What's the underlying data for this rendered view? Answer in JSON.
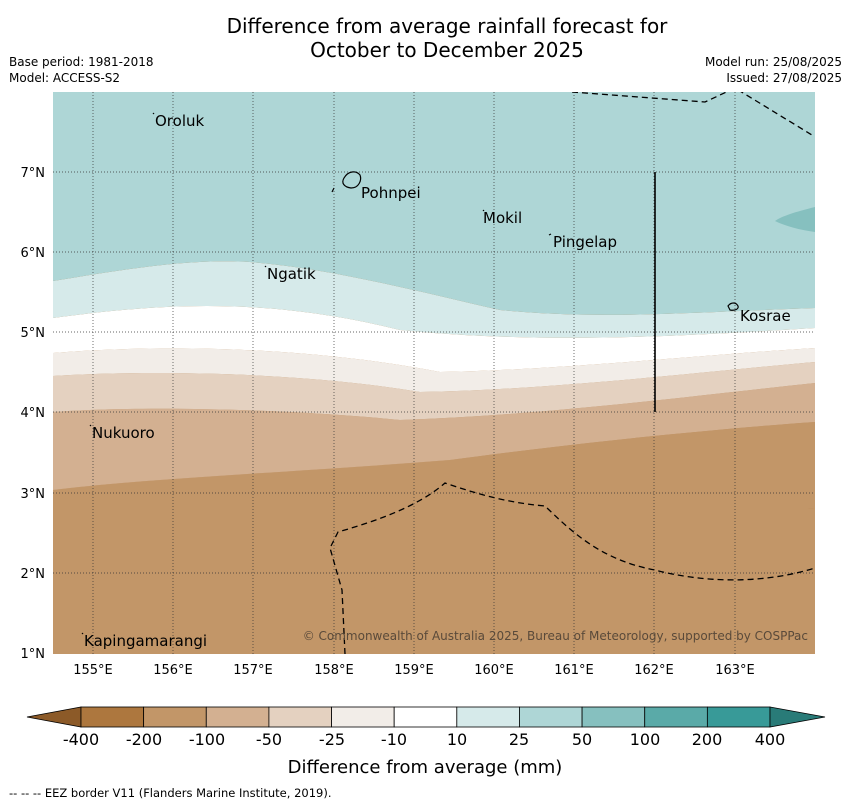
{
  "title": {
    "line1": "Difference from average rainfall forecast for",
    "line2": "October to December 2025"
  },
  "meta": {
    "base_period": "Base period: 1981-2018",
    "model": "Model: ACCESS-S2",
    "model_run": "Model run: 25/08/2025",
    "issued": "Issued: 27/08/2025"
  },
  "axes": {
    "longitude_ticks": [
      "155°E",
      "156°E",
      "157°E",
      "158°E",
      "159°E",
      "160°E",
      "161°E",
      "162°E",
      "163°E"
    ],
    "latitude_ticks": [
      "7°N",
      "6°N",
      "5°N",
      "4°N",
      "3°N",
      "2°N",
      "1°N"
    ]
  },
  "places": [
    {
      "name": "Oroluk",
      "lon": 155.8,
      "lat": 7.6
    },
    {
      "name": "Pohnpei",
      "lon": 158.3,
      "lat": 6.8
    },
    {
      "name": "Mokil",
      "lon": 159.9,
      "lat": 6.4
    },
    {
      "name": "Pingelap",
      "lon": 160.7,
      "lat": 6.1
    },
    {
      "name": "Ngatik",
      "lon": 157.1,
      "lat": 5.7
    },
    {
      "name": "Kosrae",
      "lon": 163.0,
      "lat": 5.2
    },
    {
      "name": "Nukuoro",
      "lon": 155.0,
      "lat": 3.7
    },
    {
      "name": "Kapingamarangi",
      "lon": 154.9,
      "lat": 1.1
    }
  ],
  "copyright": "© Commonwealth of Australia 2025, Bureau of Meteorology, supported by COSPPac",
  "colorbar": {
    "title": "Difference from average (mm)",
    "labels": [
      "-400",
      "-200",
      "-100",
      "-50",
      "-25",
      "-10",
      "10",
      "25",
      "50",
      "100",
      "200",
      "400"
    ],
    "colors": [
      "#8c5a28",
      "#ad773e",
      "#c29668",
      "#d3b091",
      "#e4d1c0",
      "#f2ede8",
      "#ffffff",
      "#d6eaea",
      "#aed6d6",
      "#86c0bf",
      "#5aaaa8",
      "#389a98",
      "#297b78"
    ]
  },
  "footnote": "-- -- -- EEZ border V11 (Flanders Marine Institute, 2019)."
}
